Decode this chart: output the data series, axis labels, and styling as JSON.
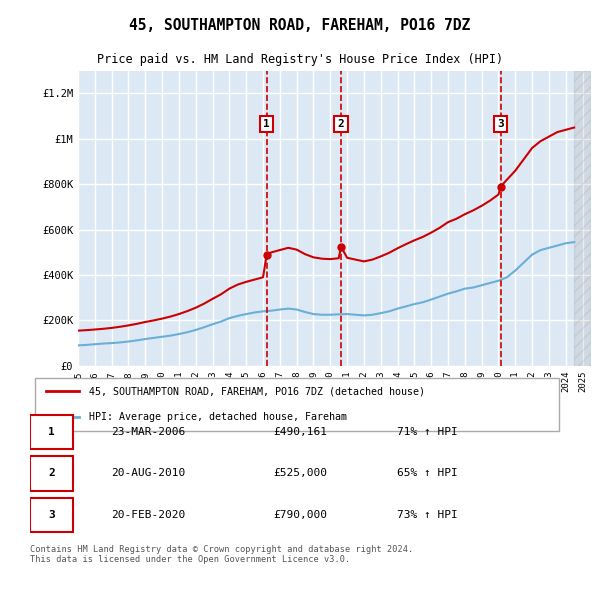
{
  "title": "45, SOUTHAMPTON ROAD, FAREHAM, PO16 7DZ",
  "subtitle": "Price paid vs. HM Land Registry's House Price Index (HPI)",
  "ylabel": "",
  "background_color": "#ffffff",
  "plot_bg_color": "#dce9f5",
  "grid_color": "#ffffff",
  "ylim": [
    0,
    1300000
  ],
  "yticks": [
    0,
    200000,
    400000,
    600000,
    800000,
    1000000,
    1200000
  ],
  "ytick_labels": [
    "£0",
    "£200K",
    "£400K",
    "£600K",
    "£800K",
    "£1M",
    "£1.2M"
  ],
  "sale_dates": [
    2006.22,
    2010.64,
    2020.13
  ],
  "sale_prices": [
    490161,
    525000,
    790000
  ],
  "sale_labels": [
    "1",
    "2",
    "3"
  ],
  "legend_red": "45, SOUTHAMPTON ROAD, FAREHAM, PO16 7DZ (detached house)",
  "legend_blue": "HPI: Average price, detached house, Fareham",
  "table_rows": [
    {
      "num": "1",
      "date": "23-MAR-2006",
      "price": "£490,161",
      "hpi": "71% ↑ HPI"
    },
    {
      "num": "2",
      "date": "20-AUG-2010",
      "price": "£525,000",
      "hpi": "65% ↑ HPI"
    },
    {
      "num": "3",
      "date": "20-FEB-2020",
      "price": "£790,000",
      "hpi": "73% ↑ HPI"
    }
  ],
  "footer": "Contains HM Land Registry data © Crown copyright and database right 2024.\nThis data is licensed under the Open Government Licence v3.0.",
  "hpi_line_color": "#6baed6",
  "price_line_color": "#cc0000",
  "vline_color": "#cc0000",
  "hpi_x": [
    1995,
    1995.5,
    1996,
    1996.5,
    1997,
    1997.5,
    1998,
    1998.5,
    1999,
    1999.5,
    2000,
    2000.5,
    2001,
    2001.5,
    2002,
    2002.5,
    2003,
    2003.5,
    2004,
    2004.5,
    2005,
    2005.5,
    2006,
    2006.5,
    2007,
    2007.5,
    2008,
    2008.5,
    2009,
    2009.5,
    2010,
    2010.5,
    2011,
    2011.5,
    2012,
    2012.5,
    2013,
    2013.5,
    2014,
    2014.5,
    2015,
    2015.5,
    2016,
    2016.5,
    2017,
    2017.5,
    2018,
    2018.5,
    2019,
    2019.5,
    2020,
    2020.5,
    2021,
    2021.5,
    2022,
    2022.5,
    2023,
    2023.5,
    2024,
    2024.5
  ],
  "hpi_y": [
    90000,
    92000,
    95000,
    98000,
    100000,
    103000,
    107000,
    112000,
    118000,
    123000,
    128000,
    133000,
    140000,
    148000,
    158000,
    170000,
    183000,
    195000,
    210000,
    220000,
    228000,
    235000,
    240000,
    243000,
    248000,
    252000,
    248000,
    237000,
    228000,
    225000,
    225000,
    227000,
    228000,
    225000,
    222000,
    225000,
    232000,
    240000,
    252000,
    262000,
    272000,
    280000,
    292000,
    305000,
    318000,
    328000,
    340000,
    345000,
    355000,
    365000,
    375000,
    390000,
    420000,
    455000,
    490000,
    510000,
    520000,
    530000,
    540000,
    545000
  ],
  "price_x": [
    1995,
    1995.5,
    1996,
    1996.5,
    1997,
    1997.5,
    1998,
    1998.5,
    1999,
    1999.5,
    2000,
    2000.5,
    2001,
    2001.5,
    2002,
    2002.5,
    2003,
    2003.5,
    2004,
    2004.5,
    2005,
    2005.5,
    2006,
    2006.22,
    2006.5,
    2007,
    2007.5,
    2008,
    2008.5,
    2009,
    2009.5,
    2010,
    2010.5,
    2010.64,
    2011,
    2011.5,
    2012,
    2012.5,
    2013,
    2013.5,
    2014,
    2014.5,
    2015,
    2015.5,
    2016,
    2016.5,
    2017,
    2017.5,
    2018,
    2018.5,
    2019,
    2019.5,
    2020,
    2020.13,
    2020.5,
    2021,
    2021.5,
    2022,
    2022.5,
    2023,
    2023.5,
    2024,
    2024.5
  ],
  "price_y": [
    155000,
    157000,
    160000,
    163000,
    167000,
    172000,
    178000,
    185000,
    193000,
    200000,
    208000,
    217000,
    228000,
    241000,
    256000,
    274000,
    295000,
    315000,
    340000,
    358000,
    370000,
    380000,
    390000,
    490161,
    500000,
    510000,
    520000,
    512000,
    492000,
    478000,
    472000,
    470000,
    474000,
    525000,
    476000,
    468000,
    460000,
    468000,
    482000,
    498000,
    518000,
    536000,
    553000,
    568000,
    587000,
    608000,
    633000,
    648000,
    668000,
    685000,
    705000,
    728000,
    755000,
    790000,
    820000,
    860000,
    910000,
    960000,
    990000,
    1010000,
    1030000,
    1040000,
    1050000
  ],
  "xlim": [
    1995,
    2025.5
  ],
  "xticks": [
    1995,
    1996,
    1997,
    1998,
    1999,
    2000,
    2001,
    2002,
    2003,
    2004,
    2005,
    2006,
    2007,
    2008,
    2009,
    2010,
    2011,
    2012,
    2013,
    2014,
    2015,
    2016,
    2017,
    2018,
    2019,
    2020,
    2021,
    2022,
    2023,
    2024,
    2025
  ]
}
